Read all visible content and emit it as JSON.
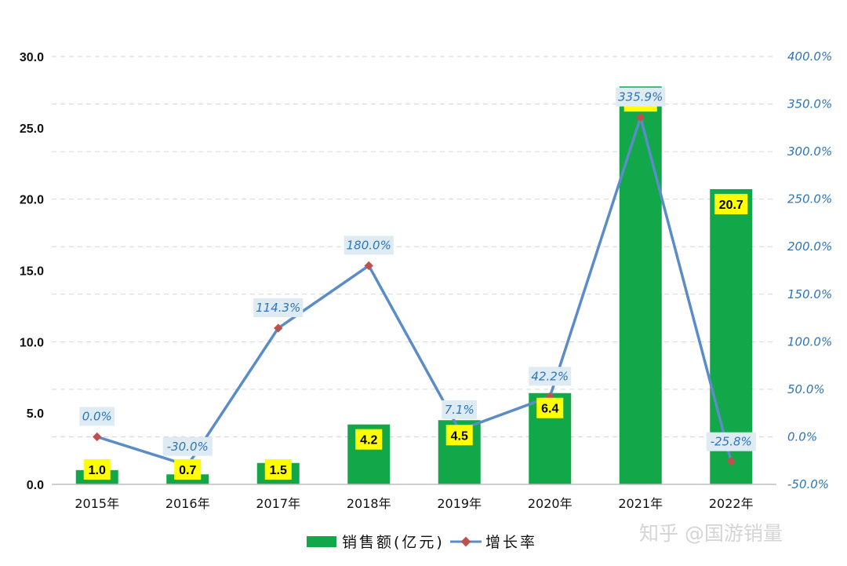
{
  "chart_data": {
    "type": "bar",
    "categories": [
      "2015年",
      "2016年",
      "2017年",
      "2018年",
      "2019年",
      "2020年",
      "2021年",
      "2022年"
    ],
    "series": [
      {
        "name": "销售额(亿元)",
        "type": "bar",
        "axis": "left",
        "values": [
          1.0,
          0.7,
          1.5,
          4.2,
          4.5,
          6.4,
          27.9,
          20.7
        ],
        "labels": [
          "1.0",
          "0.7",
          "1.5",
          "4.2",
          "4.5",
          "6.4",
          "27.9",
          "20.7"
        ]
      },
      {
        "name": "增长率",
        "type": "line",
        "axis": "right",
        "values": [
          0.0,
          -30.0,
          114.3,
          180.0,
          7.1,
          42.2,
          335.9,
          -25.8
        ],
        "labels": [
          "0.0%",
          "-30.0%",
          "114.3%",
          "180.0%",
          "7.1%",
          "42.2%",
          "335.9%",
          "-25.8%"
        ]
      }
    ],
    "y_left": {
      "ylim": [
        0,
        30
      ],
      "ticks": [
        "0.0",
        "5.0",
        "10.0",
        "15.0",
        "20.0",
        "25.0",
        "30.0"
      ]
    },
    "y_right": {
      "ylim": [
        -50,
        400
      ],
      "ticks": [
        "-50.0%",
        "0.0%",
        "50.0%",
        "100.0%",
        "150.0%",
        "200.0%",
        "250.0%",
        "300.0%",
        "350.0%",
        "400.0%"
      ]
    },
    "grid": true,
    "legend_position": "bottom",
    "colors": {
      "bar": "#12a84a",
      "line": "#5b8cc8",
      "marker": "#c0504d",
      "value_label_bg": "#ffff00",
      "growth_label_bg": "#deebf3",
      "right_axis": "#2e75b6"
    }
  },
  "watermark": "知乎 @国游销量"
}
